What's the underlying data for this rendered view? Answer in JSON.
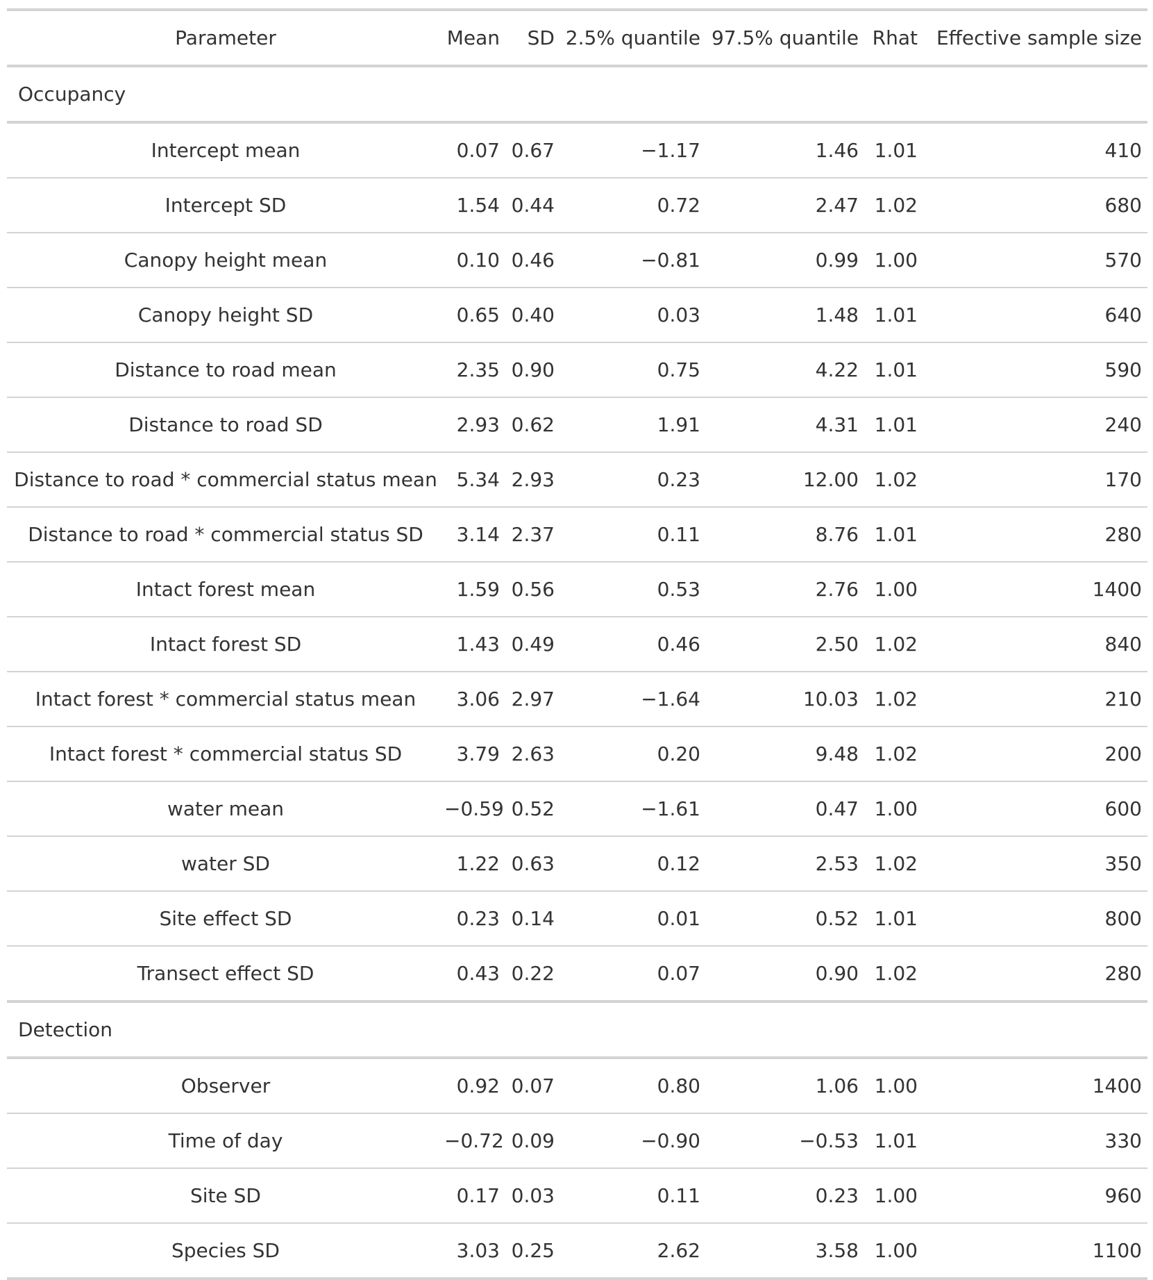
{
  "table": {
    "columns": [
      "Parameter",
      "Mean",
      "SD",
      "2.5% quantile",
      "97.5% quantile",
      "Rhat",
      "Effective sample size"
    ],
    "groups": [
      {
        "label": "Occupancy",
        "rows": [
          [
            "Intercept mean",
            "0.07",
            "0.67",
            "−1.17",
            "1.46",
            "1.01",
            "410"
          ],
          [
            "Intercept SD",
            "1.54",
            "0.44",
            "0.72",
            "2.47",
            "1.02",
            "680"
          ],
          [
            "Canopy height mean",
            "0.10",
            "0.46",
            "−0.81",
            "0.99",
            "1.00",
            "570"
          ],
          [
            "Canopy height SD",
            "0.65",
            "0.40",
            "0.03",
            "1.48",
            "1.01",
            "640"
          ],
          [
            "Distance to road mean",
            "2.35",
            "0.90",
            "0.75",
            "4.22",
            "1.01",
            "590"
          ],
          [
            "Distance to road SD",
            "2.93",
            "0.62",
            "1.91",
            "4.31",
            "1.01",
            "240"
          ],
          [
            "Distance to road * commercial status mean",
            "5.34",
            "2.93",
            "0.23",
            "12.00",
            "1.02",
            "170"
          ],
          [
            "Distance to road * commercial status SD",
            "3.14",
            "2.37",
            "0.11",
            "8.76",
            "1.01",
            "280"
          ],
          [
            "Intact forest mean",
            "1.59",
            "0.56",
            "0.53",
            "2.76",
            "1.00",
            "1400"
          ],
          [
            "Intact forest SD",
            "1.43",
            "0.49",
            "0.46",
            "2.50",
            "1.02",
            "840"
          ],
          [
            "Intact forest * commercial status mean",
            "3.06",
            "2.97",
            "−1.64",
            "10.03",
            "1.02",
            "210"
          ],
          [
            "Intact forest * commercial status SD",
            "3.79",
            "2.63",
            "0.20",
            "9.48",
            "1.02",
            "200"
          ],
          [
            "water mean",
            "−0.59",
            "0.52",
            "−1.61",
            "0.47",
            "1.00",
            "600"
          ],
          [
            "water SD",
            "1.22",
            "0.63",
            "0.12",
            "2.53",
            "1.02",
            "350"
          ],
          [
            "Site effect SD",
            "0.23",
            "0.14",
            "0.01",
            "0.52",
            "1.01",
            "800"
          ],
          [
            "Transect effect SD",
            "0.43",
            "0.22",
            "0.07",
            "0.90",
            "1.02",
            "280"
          ]
        ]
      },
      {
        "label": "Detection",
        "rows": [
          [
            "Observer",
            "0.92",
            "0.07",
            "0.80",
            "1.06",
            "1.00",
            "1400"
          ],
          [
            "Time of day",
            "−0.72",
            "0.09",
            "−0.90",
            "−0.53",
            "1.01",
            "330"
          ],
          [
            "Site SD",
            "0.17",
            "0.03",
            "0.11",
            "0.23",
            "1.00",
            "960"
          ],
          [
            "Species SD",
            "3.03",
            "0.25",
            "2.62",
            "3.58",
            "1.00",
            "1100"
          ]
        ]
      }
    ]
  }
}
